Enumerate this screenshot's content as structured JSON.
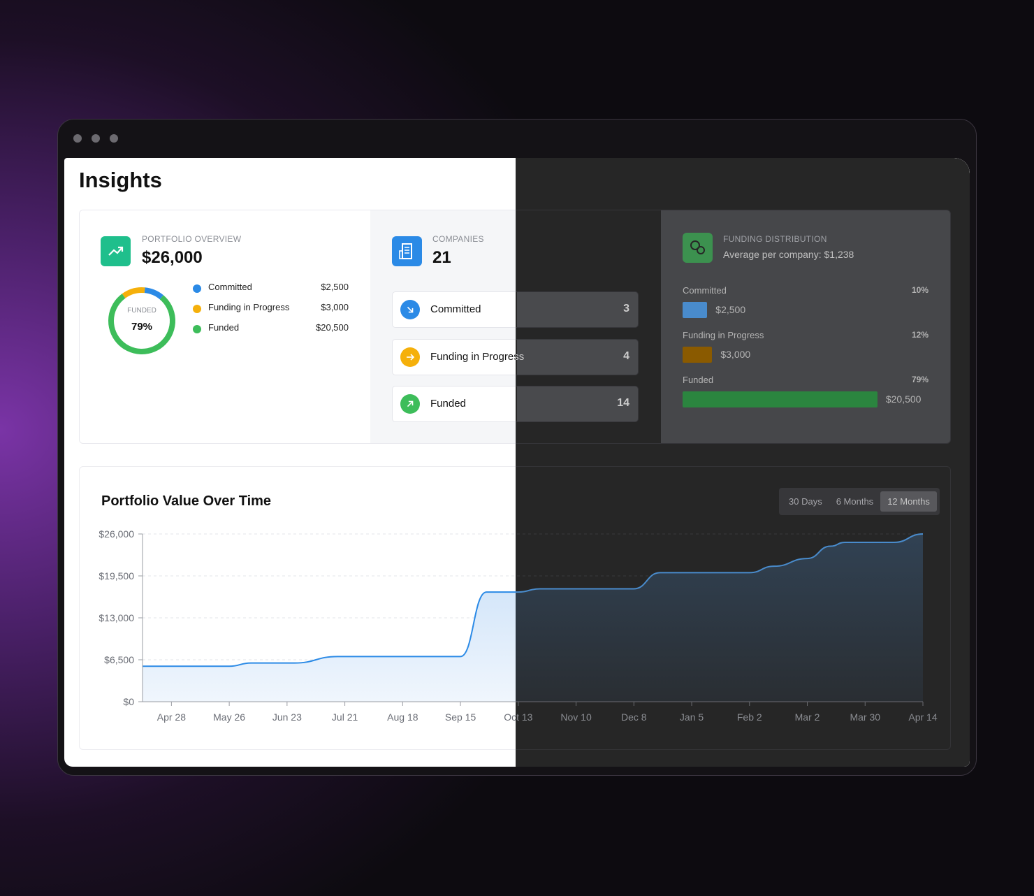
{
  "header": {
    "title": "Insights"
  },
  "portfolio": {
    "label": "PORTFOLIO OVERVIEW",
    "total": "$26,000",
    "donut_label": "FUNDED",
    "donut_value": "79%",
    "segments": [
      {
        "name": "Committed",
        "color": "#2b8ae6",
        "value": 2500,
        "value_label": "$2,500"
      },
      {
        "name": "Funding in Progress",
        "color": "#f5b00b",
        "value": 3000,
        "value_label": "$3,000"
      },
      {
        "name": "Funded",
        "color": "#3dbd5a",
        "value": 20500,
        "value_label": "$20,500"
      }
    ]
  },
  "companies": {
    "label": "COMPANIES",
    "total": 21,
    "rows": [
      {
        "name": "Committed",
        "count": 3,
        "color": "#2b8ae6"
      },
      {
        "name": "Funding in Progress",
        "count": 4,
        "color": "#f5b00b"
      },
      {
        "name": "Funded",
        "count": 14,
        "color": "#3dbd5a"
      }
    ]
  },
  "funding_distribution": {
    "label": "FUNDING DISTRIBUTION",
    "subtitle": "Average per company: $1,238",
    "items": [
      {
        "name": "Committed",
        "value": 10,
        "value_label": "10%",
        "amount": "$2,500",
        "color": "#2b8ae6"
      },
      {
        "name": "Funding in Progress",
        "value": 12,
        "value_label": "12%",
        "amount": "$3,000",
        "color": "#f5b00b"
      },
      {
        "name": "Funded",
        "value": 79,
        "value_label": "79%",
        "amount": "$20,500",
        "color": "#3dbd5a"
      }
    ]
  },
  "range_selector": {
    "options": [
      "30 Days",
      "6 Months",
      "12 Months"
    ],
    "active": 2
  },
  "chart_data": {
    "type": "area",
    "title": "Portfolio Value Over Time",
    "x": [
      0,
      6,
      7.5,
      10.5,
      13.5,
      22,
      23.8,
      26,
      27.5,
      34,
      35.8,
      42,
      43.7,
      46,
      47.6,
      48.6,
      52,
      54
    ],
    "values": [
      5500,
      5500,
      6000,
      6000,
      7000,
      7000,
      17000,
      17000,
      17500,
      17500,
      20000,
      20000,
      21000,
      22200,
      24100,
      24700,
      24700,
      26000
    ],
    "color": "#2b8ae6",
    "xlim": [
      0,
      54
    ],
    "ylim": [
      0,
      26000
    ],
    "xticks": [
      {
        "value": 2,
        "label": "Apr 28"
      },
      {
        "value": 6,
        "label": "May 26"
      },
      {
        "value": 10,
        "label": "Jun 23"
      },
      {
        "value": 14,
        "label": "Jul 21"
      },
      {
        "value": 18,
        "label": "Aug 18"
      },
      {
        "value": 22,
        "label": "Sep 15"
      },
      {
        "value": 26,
        "label": "Oct 13"
      },
      {
        "value": 30,
        "label": "Nov 10"
      },
      {
        "value": 34,
        "label": "Dec 8"
      },
      {
        "value": 38,
        "label": "Jan 5"
      },
      {
        "value": 42,
        "label": "Feb 2"
      },
      {
        "value": 46,
        "label": "Mar 2"
      },
      {
        "value": 50,
        "label": "Mar 30"
      },
      {
        "value": 54,
        "label": "Apr 14"
      }
    ],
    "yticks": [
      {
        "value": 0,
        "label": "$0"
      },
      {
        "value": 6500,
        "label": "$6,500"
      },
      {
        "value": 13000,
        "label": "$13,000"
      },
      {
        "value": 19500,
        "label": "$19,500"
      },
      {
        "value": 26000,
        "label": "$26,000"
      }
    ],
    "grid": true
  }
}
